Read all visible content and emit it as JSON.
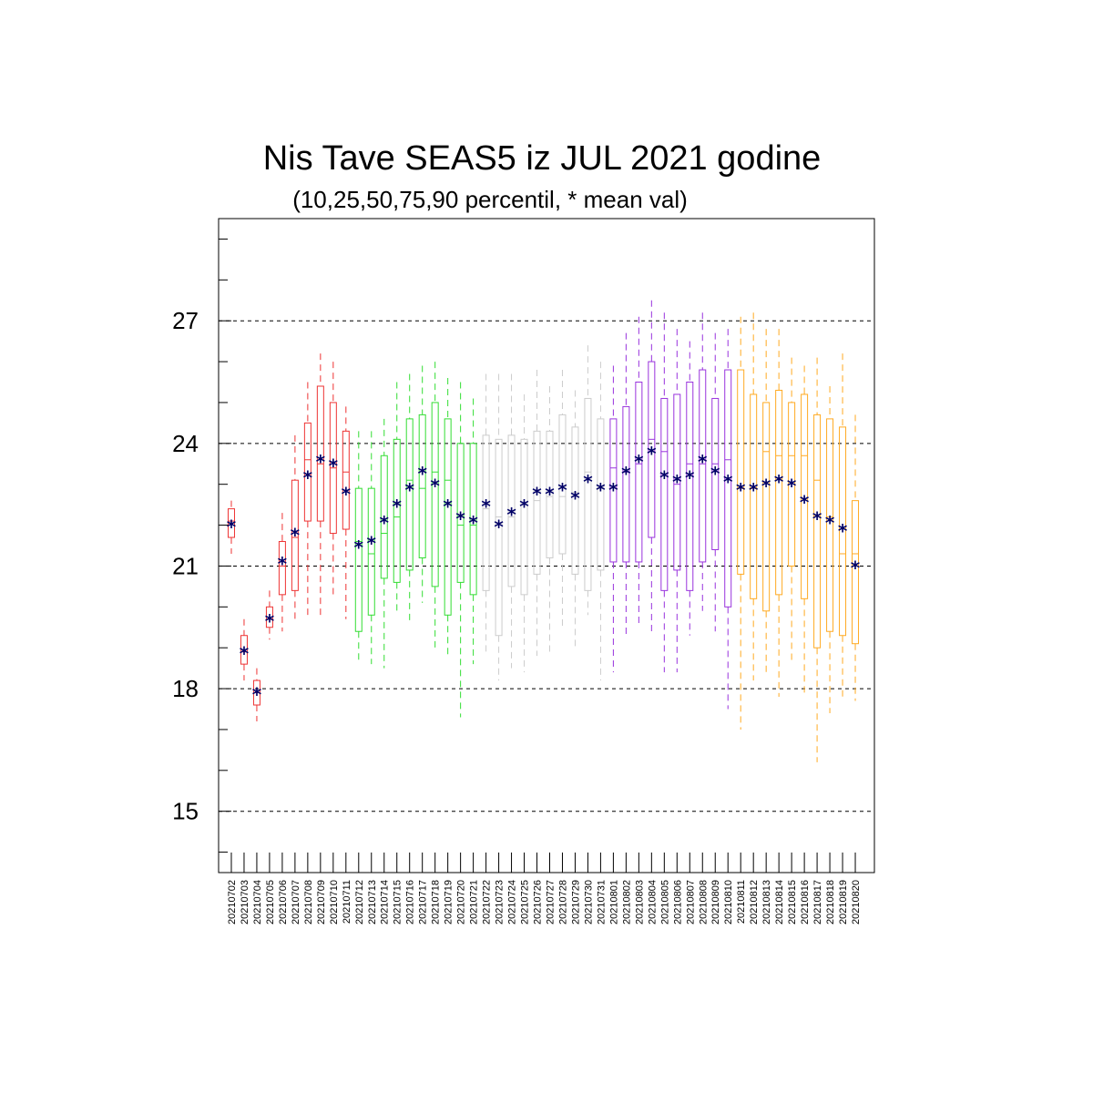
{
  "chart_data": {
    "type": "box",
    "title": "Nis Tave SEAS5 iz JUL 2021 godine",
    "subtitle": "(10,25,50,75,90 percentil, * mean val)",
    "xlabel": "",
    "ylabel": "",
    "ylim": [
      13.5,
      29.5
    ],
    "yticks": [
      "15",
      "18",
      "21",
      "24",
      "27"
    ],
    "grid": "horizontal dashed at major ticks",
    "legend": "none",
    "mean_marker": "*",
    "mean_color": "#000066",
    "colors": {
      "red": "#ee3333",
      "green": "#33dd33",
      "gray": "#cccccc",
      "purple": "#9933dd",
      "orange": "#ffaa22"
    },
    "dates": [
      "20210702",
      "20210703",
      "20210704",
      "20210705",
      "20210706",
      "20210707",
      "20210708",
      "20210709",
      "20210710",
      "20210711",
      "20210712",
      "20210713",
      "20210714",
      "20210715",
      "20210716",
      "20210717",
      "20210718",
      "20210719",
      "20210720",
      "20210721",
      "20210722",
      "20210723",
      "20210724",
      "20210725",
      "20210726",
      "20210727",
      "20210728",
      "20210729",
      "20210730",
      "20210731",
      "20210801",
      "20210802",
      "20210803",
      "20210804",
      "20210805",
      "20210806",
      "20210807",
      "20210808",
      "20210809",
      "20210810",
      "20210811",
      "20210812",
      "20210813",
      "20210814",
      "20210815",
      "20210816",
      "20210817",
      "20210818",
      "20210819",
      "20210820"
    ],
    "box_colors": [
      "red",
      "red",
      "red",
      "red",
      "red",
      "red",
      "red",
      "red",
      "red",
      "red",
      "green",
      "green",
      "green",
      "green",
      "green",
      "green",
      "green",
      "green",
      "green",
      "green",
      "gray",
      "gray",
      "gray",
      "gray",
      "gray",
      "gray",
      "gray",
      "gray",
      "gray",
      "gray",
      "purple",
      "purple",
      "purple",
      "purple",
      "purple",
      "purple",
      "purple",
      "purple",
      "purple",
      "purple",
      "orange",
      "orange",
      "orange",
      "orange",
      "orange",
      "orange",
      "orange",
      "orange",
      "orange",
      "orange"
    ],
    "p10": [
      21.3,
      18.2,
      17.2,
      19.2,
      19.4,
      19.6,
      19.8,
      19.7,
      20.2,
      19.7,
      18.6,
      18.6,
      18.5,
      19.8,
      19.6,
      20.1,
      18.9,
      18.8,
      17.3,
      18.6,
      18.9,
      18.2,
      18.5,
      18.4,
      18.8,
      18.8,
      19.5,
      19.0,
      19.8,
      18.2,
      18.4,
      19.3,
      19.5,
      19.3,
      18.4,
      18.4,
      19.3,
      19.9,
      19.4,
      17.5,
      17.0,
      18.2,
      18.3,
      17.8,
      18.6,
      17.8,
      16.2,
      17.4,
      17.8,
      17.7
    ],
    "p25": [
      21.7,
      18.6,
      17.6,
      19.5,
      20.3,
      20.4,
      22.1,
      22.1,
      21.8,
      21.9,
      19.4,
      19.8,
      20.7,
      20.6,
      20.9,
      21.2,
      20.5,
      19.8,
      20.6,
      20.3,
      20.4,
      19.3,
      20.5,
      20.3,
      20.8,
      21.2,
      21.3,
      20.8,
      20.4,
      20.9,
      21.1,
      21.1,
      21.1,
      21.7,
      20.4,
      20.9,
      20.4,
      21.1,
      21.4,
      20.0,
      20.8,
      20.2,
      19.9,
      20.3,
      21.0,
      20.2,
      19.0,
      19.4,
      19.3,
      19.1
    ],
    "p50": [
      22.1,
      18.9,
      17.9,
      19.7,
      21.0,
      21.7,
      23.6,
      23.5,
      23.4,
      23.3,
      21.6,
      21.3,
      21.8,
      22.2,
      23.1,
      22.9,
      23.3,
      23.1,
      22.0,
      22.0,
      22.4,
      22.2,
      22.2,
      22.5,
      22.6,
      22.7,
      22.7,
      22.8,
      23.3,
      22.9,
      23.4,
      23.3,
      23.5,
      24.1,
      23.8,
      23.0,
      23.5,
      23.5,
      23.5,
      23.6,
      22.9,
      22.9,
      23.8,
      23.7,
      23.7,
      23.7,
      23.1,
      22.2,
      21.3,
      21.3
    ],
    "p75": [
      22.4,
      19.3,
      18.2,
      20.0,
      21.6,
      23.1,
      24.5,
      25.4,
      25.0,
      24.3,
      22.9,
      22.9,
      23.7,
      24.1,
      24.6,
      24.7,
      25.0,
      24.6,
      24.0,
      24.0,
      24.2,
      24.1,
      24.2,
      24.1,
      24.3,
      24.3,
      24.7,
      24.4,
      25.1,
      24.6,
      24.6,
      24.9,
      25.5,
      26.0,
      25.1,
      25.2,
      25.5,
      25.8,
      25.1,
      25.8,
      25.8,
      25.2,
      25.0,
      25.3,
      25.0,
      25.2,
      24.7,
      24.6,
      24.4,
      22.6
    ],
    "p90": [
      22.6,
      19.7,
      18.5,
      20.4,
      22.3,
      24.2,
      25.5,
      26.2,
      26.0,
      24.9,
      24.3,
      24.3,
      24.6,
      25.5,
      25.7,
      25.9,
      26.0,
      25.6,
      25.5,
      25.1,
      25.7,
      25.7,
      25.7,
      25.2,
      25.8,
      25.4,
      25.8,
      25.3,
      26.4,
      26.0,
      25.9,
      26.7,
      27.1,
      27.5,
      27.2,
      26.8,
      26.5,
      27.2,
      26.7,
      26.8,
      27.1,
      27.2,
      26.8,
      26.8,
      26.1,
      25.9,
      26.1,
      25.4,
      26.2,
      24.7
    ],
    "mean": [
      22.0,
      18.9,
      17.9,
      19.7,
      21.1,
      21.8,
      23.2,
      23.6,
      23.5,
      22.8,
      21.5,
      21.6,
      22.1,
      22.5,
      22.9,
      23.3,
      23.0,
      22.5,
      22.2,
      22.1,
      22.5,
      22.0,
      22.3,
      22.5,
      22.8,
      22.8,
      22.9,
      22.7,
      23.1,
      22.9,
      22.9,
      23.3,
      23.6,
      23.8,
      23.2,
      23.1,
      23.2,
      23.6,
      23.3,
      23.1,
      22.9,
      22.9,
      23.0,
      23.1,
      23.0,
      22.6,
      22.2,
      22.1,
      21.9,
      21.0
    ]
  }
}
